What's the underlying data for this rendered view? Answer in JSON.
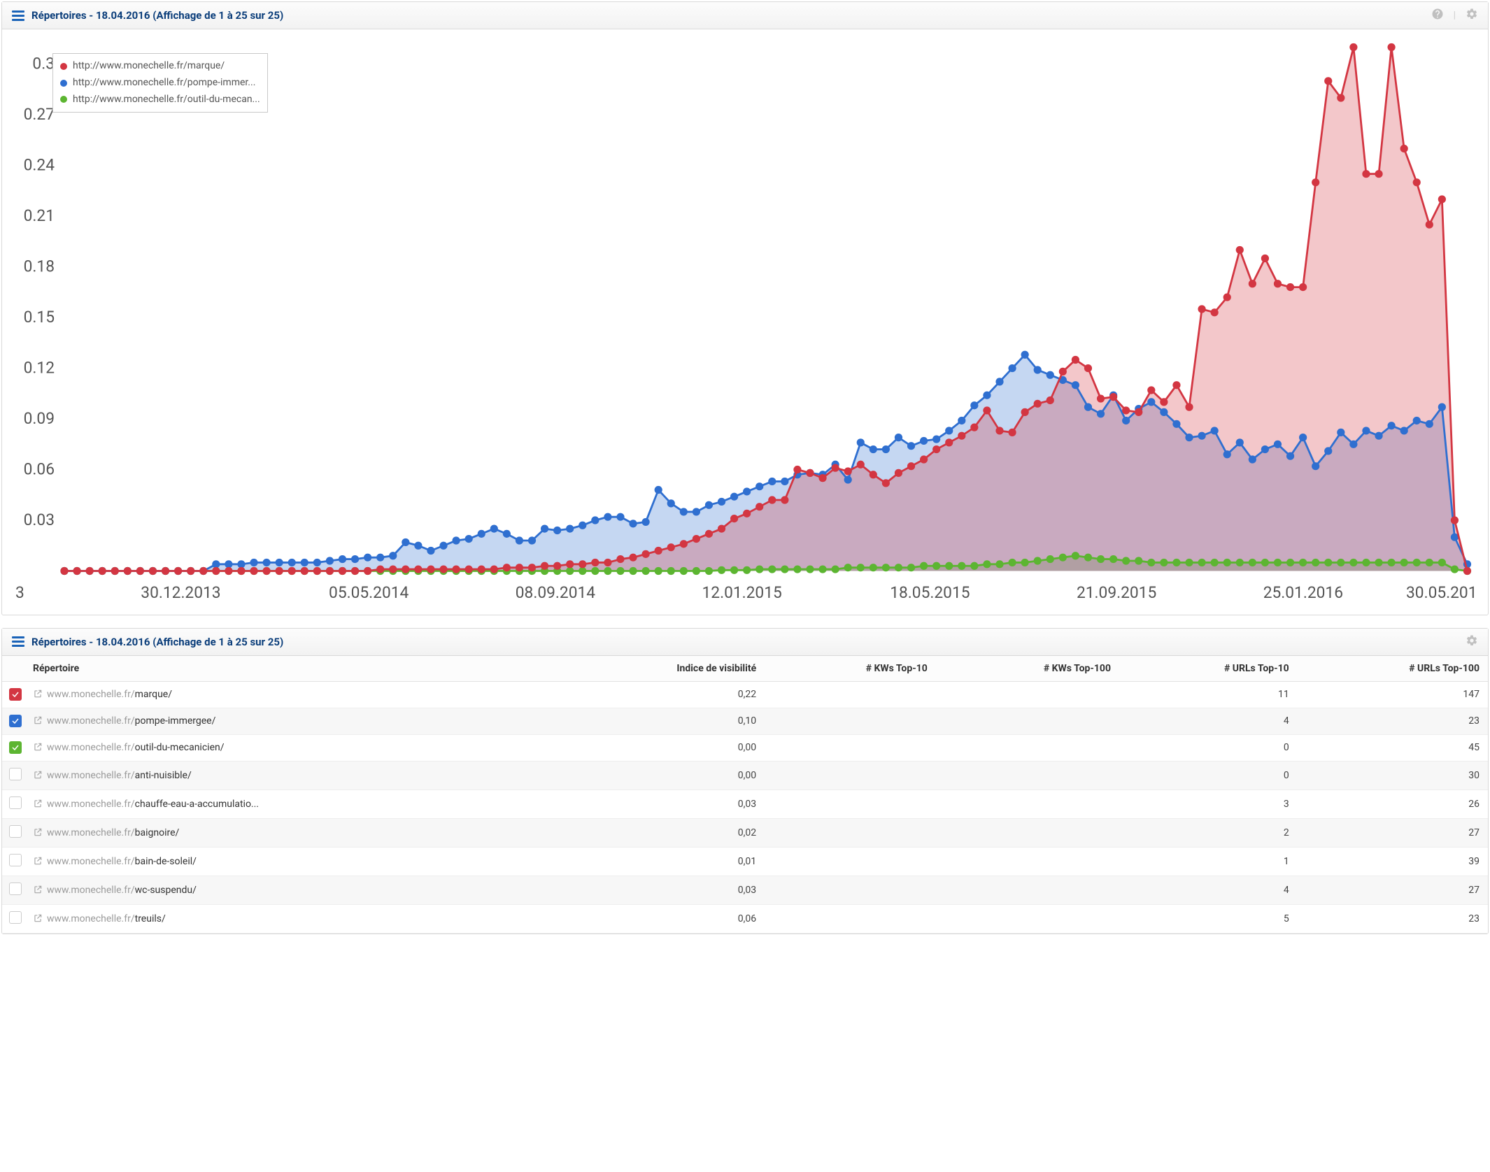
{
  "chart_panel": {
    "title": "Répertoires - 18.04.2016 (Affichage de 1 à 25 sur 25)"
  },
  "table_panel": {
    "title": "Répertoires - 18.04.2016 (Affichage de 1 à 25 sur 25)"
  },
  "chart": {
    "type": "line-area",
    "background_color": "#ffffff",
    "ylim": [
      0,
      0.31
    ],
    "y_ticks": [
      0.03,
      0.06,
      0.09,
      0.12,
      0.15,
      0.18,
      0.21,
      0.24,
      0.27,
      0.3
    ],
    "y_tick_labels": [
      "0.03",
      "0.06",
      "0.09",
      "0.12",
      "0.15",
      "0.18",
      "0.21",
      "0.24",
      "0.27",
      "0.3"
    ],
    "x_axis_label_left": "3",
    "x_tick_positions": [
      0.083,
      0.217,
      0.35,
      0.483,
      0.617,
      0.75,
      0.883
    ],
    "x_tick_labels": [
      "30.12.2013",
      "05.05.2014",
      "08.09.2014",
      "12.01.2015",
      "18.05.2015",
      "21.09.2015",
      "25.01.2016"
    ],
    "x_axis_tail_label": "30.05.201",
    "marker_radius": 3.2,
    "line_width": 1.6,
    "fill_opacity": 0.28,
    "axis_color": "#666666",
    "tick_label_color": "#555555",
    "tick_fontsize": 13,
    "legend": {
      "border_color": "#c9c9c9",
      "text_color": "#555555",
      "fontsize": 14,
      "items": [
        {
          "color": "#d33642",
          "label": "http://www.monechelle.fr/marque/"
        },
        {
          "color": "#2f6fd0",
          "label": "http://www.monechelle.fr/pompe-immer..."
        },
        {
          "color": "#5cb531",
          "label": "http://www.monechelle.fr/outil-du-mecan..."
        }
      ]
    },
    "series": [
      {
        "name": "marque",
        "color": "#d33642",
        "fill": "#d33642",
        "values": [
          0,
          0,
          0,
          0,
          0,
          0,
          0,
          0,
          0,
          0,
          0,
          0,
          0,
          0,
          0,
          0,
          0,
          0,
          0,
          0,
          0,
          0,
          0,
          0,
          0,
          0.001,
          0.001,
          0.001,
          0.001,
          0.001,
          0.001,
          0.001,
          0.001,
          0.001,
          0.001,
          0.002,
          0.002,
          0.002,
          0.003,
          0.003,
          0.004,
          0.004,
          0.005,
          0.005,
          0.007,
          0.008,
          0.01,
          0.012,
          0.014,
          0.016,
          0.019,
          0.022,
          0.025,
          0.031,
          0.034,
          0.038,
          0.042,
          0.042,
          0.06,
          0.058,
          0.055,
          0.061,
          0.059,
          0.063,
          0.057,
          0.052,
          0.058,
          0.062,
          0.066,
          0.072,
          0.076,
          0.08,
          0.085,
          0.095,
          0.083,
          0.082,
          0.094,
          0.099,
          0.101,
          0.118,
          0.125,
          0.12,
          0.102,
          0.103,
          0.095,
          0.094,
          0.107,
          0.1,
          0.11,
          0.097,
          0.155,
          0.153,
          0.162,
          0.19,
          0.17,
          0.185,
          0.17,
          0.168,
          0.168,
          0.23,
          0.29,
          0.28,
          0.31,
          0.235,
          0.235,
          0.31,
          0.25,
          0.23,
          0.205,
          0.22,
          0.03,
          0
        ]
      },
      {
        "name": "pompe-immergee",
        "color": "#2f6fd0",
        "fill": "#2f6fd0",
        "values": [
          0,
          0,
          0,
          0,
          0,
          0,
          0,
          0,
          0,
          0,
          0,
          0,
          0.004,
          0.004,
          0.004,
          0.005,
          0.005,
          0.005,
          0.005,
          0.005,
          0.005,
          0.006,
          0.007,
          0.007,
          0.008,
          0.008,
          0.009,
          0.017,
          0.015,
          0.012,
          0.015,
          0.018,
          0.019,
          0.022,
          0.025,
          0.022,
          0.018,
          0.018,
          0.025,
          0.024,
          0.025,
          0.027,
          0.03,
          0.032,
          0.032,
          0.028,
          0.029,
          0.048,
          0.04,
          0.035,
          0.035,
          0.039,
          0.041,
          0.044,
          0.047,
          0.05,
          0.053,
          0.053,
          0.057,
          0.058,
          0.057,
          0.063,
          0.054,
          0.076,
          0.072,
          0.072,
          0.079,
          0.074,
          0.077,
          0.078,
          0.083,
          0.089,
          0.098,
          0.104,
          0.112,
          0.12,
          0.128,
          0.119,
          0.116,
          0.113,
          0.11,
          0.097,
          0.093,
          0.104,
          0.089,
          0.096,
          0.1,
          0.094,
          0.087,
          0.079,
          0.08,
          0.083,
          0.069,
          0.076,
          0.066,
          0.072,
          0.075,
          0.068,
          0.079,
          0.062,
          0.071,
          0.082,
          0.075,
          0.083,
          0.08,
          0.086,
          0.083,
          0.089,
          0.087,
          0.097,
          0.02,
          0.004
        ]
      },
      {
        "name": "outil-du-mecanicien",
        "color": "#5cb531",
        "fill": "#5cb531",
        "values": [
          0,
          0,
          0,
          0,
          0,
          0,
          0,
          0,
          0,
          0,
          0,
          0,
          0,
          0,
          0,
          0,
          0,
          0,
          0,
          0,
          0,
          0,
          0,
          0,
          0,
          0,
          0,
          0,
          0,
          0,
          0,
          0,
          0,
          0,
          0,
          0,
          0,
          0,
          0,
          0,
          0,
          0,
          0,
          0,
          0,
          0,
          0,
          0,
          0,
          0,
          0,
          0,
          0.0005,
          0.0005,
          0.0005,
          0.001,
          0.001,
          0.001,
          0.001,
          0.001,
          0.001,
          0.001,
          0.002,
          0.002,
          0.002,
          0.002,
          0.002,
          0.002,
          0.003,
          0.003,
          0.003,
          0.003,
          0.003,
          0.004,
          0.004,
          0.005,
          0.005,
          0.006,
          0.007,
          0.008,
          0.009,
          0.008,
          0.007,
          0.007,
          0.006,
          0.006,
          0.005,
          0.005,
          0.005,
          0.005,
          0.005,
          0.005,
          0.005,
          0.005,
          0.005,
          0.005,
          0.005,
          0.005,
          0.005,
          0.005,
          0.005,
          0.005,
          0.005,
          0.005,
          0.005,
          0.005,
          0.005,
          0.005,
          0.005,
          0.005,
          0.001,
          0
        ]
      }
    ]
  },
  "table": {
    "columns": [
      "Répertoire",
      "Indice de visibilité",
      "# KWs Top-10",
      "# KWs Top-100",
      "# URLs Top-10",
      "# URLs Top-100"
    ],
    "column_aligns": [
      "left",
      "right",
      "right",
      "right",
      "right",
      "right"
    ],
    "base_domain": "www.monechelle.fr/",
    "rows": [
      {
        "checked": true,
        "check_color": "#d33642",
        "path": "marque/",
        "vis": "0,22",
        "kw10": "",
        "kw100": "",
        "u10": "11",
        "u100": "147"
      },
      {
        "checked": true,
        "check_color": "#2f6fd0",
        "path": "pompe-immergee/",
        "vis": "0,10",
        "kw10": "",
        "kw100": "",
        "u10": "4",
        "u100": "23"
      },
      {
        "checked": true,
        "check_color": "#5cb531",
        "path": "outil-du-mecanicien/",
        "vis": "0,00",
        "kw10": "",
        "kw100": "",
        "u10": "0",
        "u100": "45"
      },
      {
        "checked": false,
        "check_color": "",
        "path": "anti-nuisible/",
        "vis": "0,00",
        "kw10": "",
        "kw100": "",
        "u10": "0",
        "u100": "30"
      },
      {
        "checked": false,
        "check_color": "",
        "path": "chauffe-eau-a-accumulatio...",
        "vis": "0,03",
        "kw10": "",
        "kw100": "",
        "u10": "3",
        "u100": "26"
      },
      {
        "checked": false,
        "check_color": "",
        "path": "baignoire/",
        "vis": "0,02",
        "kw10": "",
        "kw100": "",
        "u10": "2",
        "u100": "27"
      },
      {
        "checked": false,
        "check_color": "",
        "path": "bain-de-soleil/",
        "vis": "0,01",
        "kw10": "",
        "kw100": "",
        "u10": "1",
        "u100": "39"
      },
      {
        "checked": false,
        "check_color": "",
        "path": "wc-suspendu/",
        "vis": "0,03",
        "kw10": "",
        "kw100": "",
        "u10": "4",
        "u100": "27"
      },
      {
        "checked": false,
        "check_color": "",
        "path": "treuils/",
        "vis": "0,06",
        "kw10": "",
        "kw100": "",
        "u10": "5",
        "u100": "23"
      }
    ]
  }
}
